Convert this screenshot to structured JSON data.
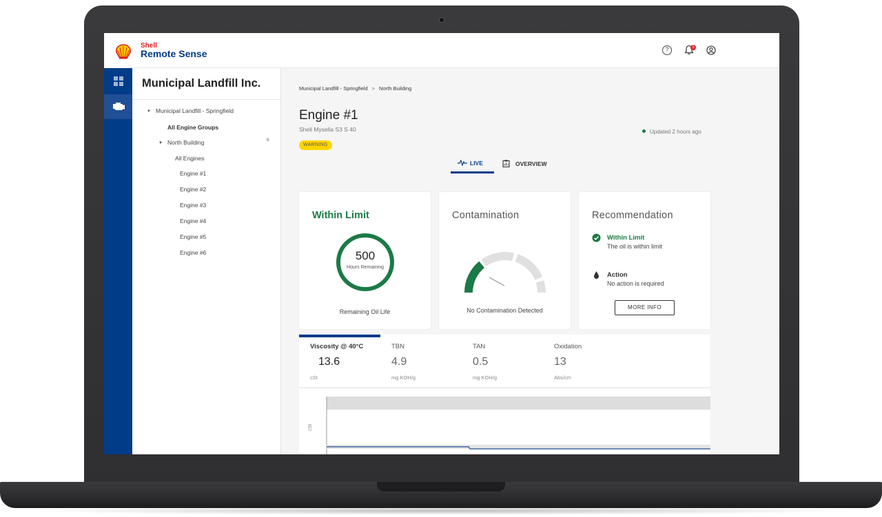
{
  "brand": {
    "top": "Shell",
    "name": "Remote Sense",
    "logo_icon": "shell-pecten-icon"
  },
  "header": {
    "notification_count": "5"
  },
  "rail": {
    "items": [
      "dashboard-grid-icon",
      "engine-icon"
    ]
  },
  "tree": {
    "title": "Municipal Landfill Inc.",
    "site": "Municipal Landfill - Springfield",
    "all_groups": "All Engine Groups",
    "group": "North Building",
    "group_count": "6",
    "all_engines": "All Engines",
    "engines": [
      "Engine #1",
      "Engine #2",
      "Engine #3",
      "Engine #4",
      "Engine #5",
      "Engine #6"
    ]
  },
  "breadcrumb": {
    "site": "Municipal Landfill - Springfield",
    "separator": ">",
    "building": "North Building"
  },
  "engine": {
    "title": "Engine #1",
    "oil": "Shell Mysella S3 S 40",
    "status": "WARNING",
    "updated": "Updated 2 hours ago"
  },
  "tabs": {
    "live": "LIVE",
    "overview": "OVERVIEW"
  },
  "oil_life": {
    "status": "Within Limit",
    "value": "500",
    "unit": "Hours Remaining",
    "caption": "Remaining Oil Life"
  },
  "contamination": {
    "title": "Contamination",
    "caption": "No Contamination Detected",
    "level_fraction": 0.28
  },
  "recommendation": {
    "title": "Recommendation",
    "status_head": "Within Limit",
    "status_text": "The oil is within limit",
    "action_head": "Action",
    "action_text": "No action is required",
    "button": "MORE INFO"
  },
  "metrics": [
    {
      "name": "Viscosity @ 40°C",
      "value": "13.6",
      "unit": "cSt"
    },
    {
      "name": "TBN",
      "value": "4.9",
      "unit": "mg KOH/g"
    },
    {
      "name": "TAN",
      "value": "0.5",
      "unit": "mg KOH/g"
    },
    {
      "name": "Oxidation",
      "value": "13",
      "unit": "Abs/cm"
    }
  ],
  "chart": {
    "ylabel": "cSt"
  },
  "colors": {
    "brand_blue": "#003c88",
    "green": "#1b7a45",
    "warning": "#ffd500",
    "shell_red": "#dd1d21",
    "shell_yellow": "#fbce07"
  }
}
